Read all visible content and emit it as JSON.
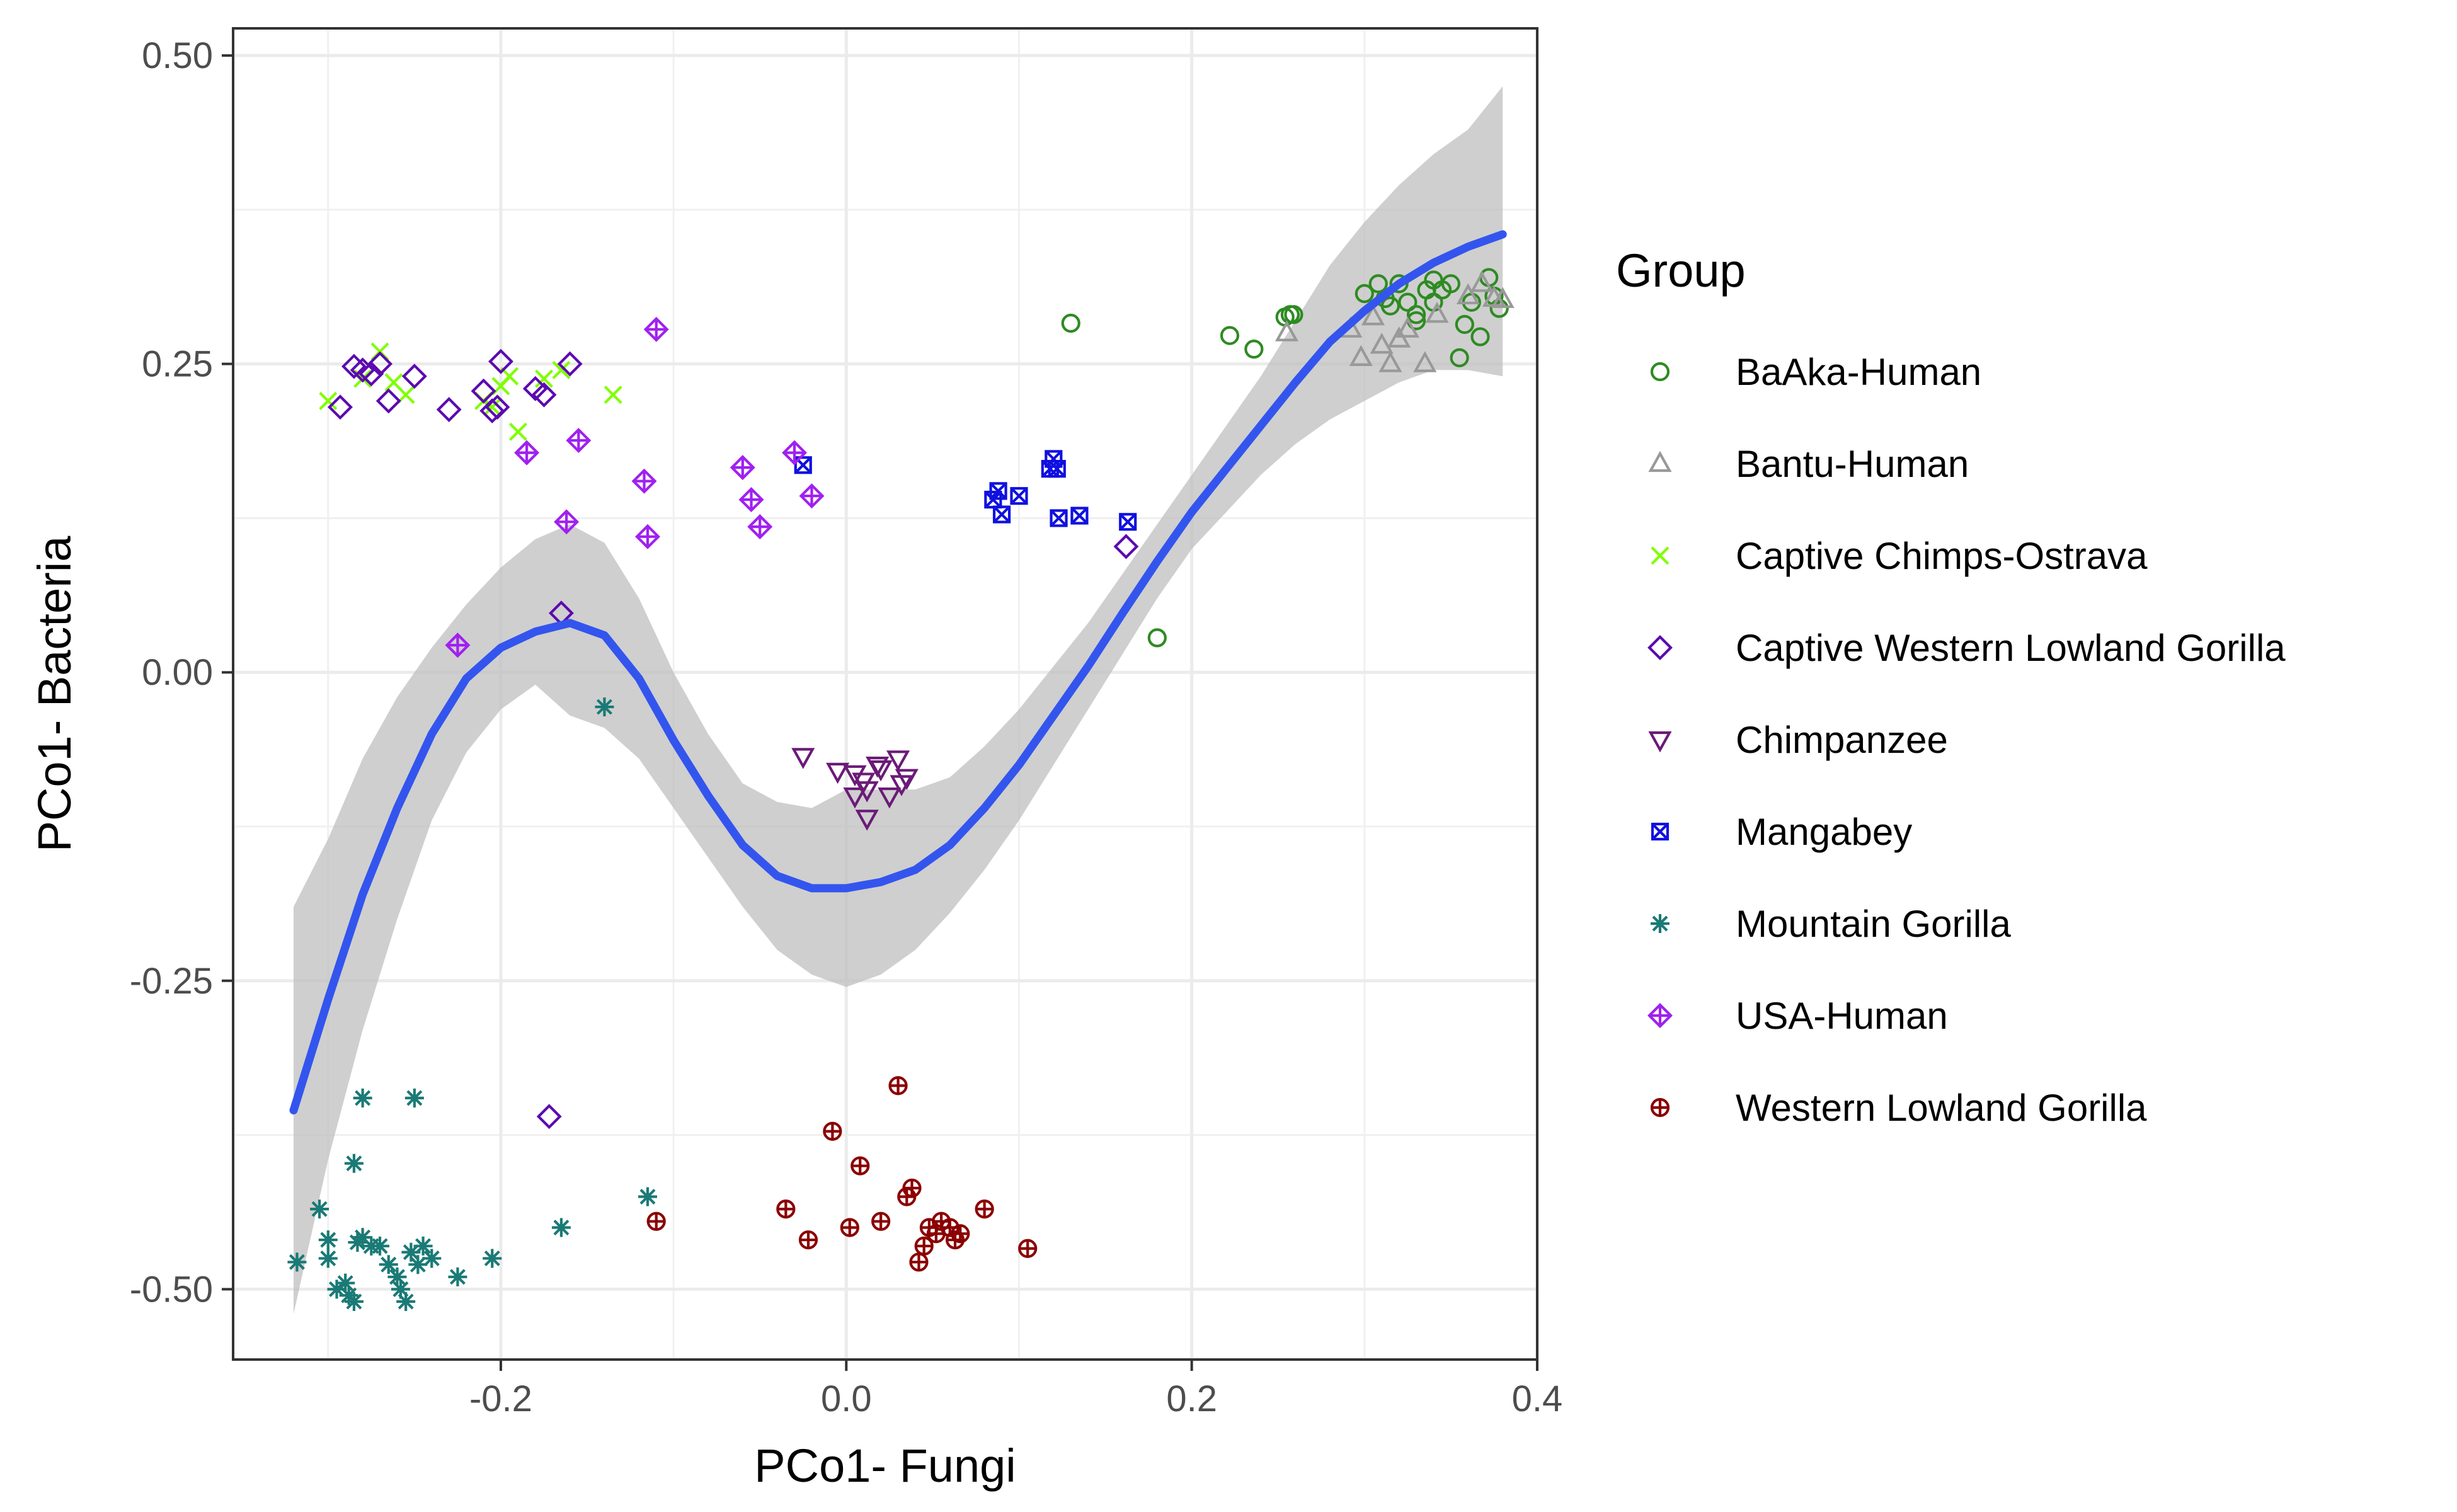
{
  "chart_data": {
    "type": "scatter",
    "xlabel": "PCo1- Fungi",
    "ylabel": "PCo1- Bacteria",
    "xlim": [
      -0.355,
      0.4
    ],
    "ylim": [
      -0.557,
      0.522
    ],
    "x_ticks": [
      -0.2,
      0.0,
      0.2,
      0.4
    ],
    "x_tick_labels": [
      "-0.2",
      "0.0",
      "0.2",
      "0.4"
    ],
    "y_ticks": [
      -0.5,
      -0.25,
      0.0,
      0.25,
      0.5
    ],
    "y_tick_labels": [
      "-0.50",
      "-0.25",
      "0.00",
      "0.25",
      "0.50"
    ],
    "grid": true,
    "legend_position": "right",
    "legend_title": "Group",
    "series": [
      {
        "name": "BaAka-Human",
        "color": "#2e8b22",
        "shape": "circle",
        "points": [
          [
            0.13,
            0.283
          ],
          [
            0.18,
            0.028
          ],
          [
            0.222,
            0.273
          ],
          [
            0.236,
            0.262
          ],
          [
            0.254,
            0.288
          ],
          [
            0.257,
            0.29
          ],
          [
            0.259,
            0.29
          ],
          [
            0.3,
            0.307
          ],
          [
            0.308,
            0.315
          ],
          [
            0.312,
            0.303
          ],
          [
            0.315,
            0.297
          ],
          [
            0.32,
            0.315
          ],
          [
            0.325,
            0.3
          ],
          [
            0.33,
            0.29
          ],
          [
            0.336,
            0.31
          ],
          [
            0.34,
            0.318
          ],
          [
            0.345,
            0.31
          ],
          [
            0.35,
            0.315
          ],
          [
            0.355,
            0.255
          ],
          [
            0.358,
            0.282
          ],
          [
            0.362,
            0.3
          ],
          [
            0.367,
            0.272
          ],
          [
            0.372,
            0.32
          ],
          [
            0.375,
            0.305
          ],
          [
            0.378,
            0.295
          ],
          [
            0.34,
            0.3
          ],
          [
            0.33,
            0.285
          ]
        ]
      },
      {
        "name": "Bantu-Human",
        "color": "#999999",
        "shape": "triangle",
        "points": [
          [
            0.255,
            0.275
          ],
          [
            0.292,
            0.278
          ],
          [
            0.298,
            0.255
          ],
          [
            0.305,
            0.288
          ],
          [
            0.31,
            0.265
          ],
          [
            0.315,
            0.25
          ],
          [
            0.32,
            0.27
          ],
          [
            0.335,
            0.25
          ],
          [
            0.342,
            0.29
          ],
          [
            0.36,
            0.305
          ],
          [
            0.368,
            0.315
          ],
          [
            0.375,
            0.303
          ],
          [
            0.38,
            0.302
          ],
          [
            0.325,
            0.278
          ]
        ]
      },
      {
        "name": "Captive Chimps-Ostrava",
        "color": "#7fff00",
        "shape": "x",
        "points": [
          [
            -0.3,
            0.22
          ],
          [
            -0.28,
            0.238
          ],
          [
            -0.27,
            0.26
          ],
          [
            -0.262,
            0.235
          ],
          [
            -0.255,
            0.225
          ],
          [
            -0.21,
            0.22
          ],
          [
            -0.205,
            0.215
          ],
          [
            -0.2,
            0.232
          ],
          [
            -0.195,
            0.24
          ],
          [
            -0.19,
            0.195
          ],
          [
            -0.175,
            0.238
          ],
          [
            -0.165,
            0.245
          ],
          [
            -0.135,
            0.225
          ]
        ]
      },
      {
        "name": "Captive Western Lowland Gorilla",
        "color": "#5c0ab0",
        "shape": "diamond",
        "points": [
          [
            -0.293,
            0.215
          ],
          [
            -0.285,
            0.248
          ],
          [
            -0.28,
            0.245
          ],
          [
            -0.275,
            0.242
          ],
          [
            -0.27,
            0.25
          ],
          [
            -0.265,
            0.22
          ],
          [
            -0.25,
            0.24
          ],
          [
            -0.23,
            0.213
          ],
          [
            -0.21,
            0.228
          ],
          [
            -0.205,
            0.212
          ],
          [
            -0.202,
            0.215
          ],
          [
            -0.2,
            0.252
          ],
          [
            -0.18,
            0.23
          ],
          [
            -0.175,
            0.225
          ],
          [
            -0.16,
            0.25
          ],
          [
            -0.165,
            0.048
          ],
          [
            -0.172,
            -0.36
          ],
          [
            0.162,
            0.102
          ]
        ]
      },
      {
        "name": "Chimpanzee",
        "color": "#6b1a78",
        "shape": "triangle-down",
        "points": [
          [
            -0.025,
            -0.068
          ],
          [
            -0.005,
            -0.08
          ],
          [
            0.005,
            -0.082
          ],
          [
            0.01,
            -0.088
          ],
          [
            0.012,
            -0.095
          ],
          [
            0.018,
            -0.075
          ],
          [
            0.02,
            -0.078
          ],
          [
            0.025,
            -0.1
          ],
          [
            0.03,
            -0.07
          ],
          [
            0.032,
            -0.09
          ],
          [
            0.035,
            -0.085
          ],
          [
            0.012,
            -0.118
          ],
          [
            0.005,
            -0.1
          ]
        ]
      },
      {
        "name": "Mangabey",
        "color": "#1010e0",
        "shape": "boxx",
        "points": [
          [
            -0.025,
            0.168
          ],
          [
            0.085,
            0.14
          ],
          [
            0.088,
            0.147
          ],
          [
            0.09,
            0.128
          ],
          [
            0.1,
            0.143
          ],
          [
            0.118,
            0.165
          ],
          [
            0.12,
            0.173
          ],
          [
            0.122,
            0.165
          ],
          [
            0.123,
            0.125
          ],
          [
            0.135,
            0.127
          ],
          [
            0.163,
            0.122
          ]
        ]
      },
      {
        "name": "Mountain Gorilla",
        "color": "#1a7a75",
        "shape": "asterisk",
        "points": [
          [
            -0.14,
            -0.028
          ],
          [
            -0.318,
            -0.478
          ],
          [
            -0.305,
            -0.435
          ],
          [
            -0.3,
            -0.46
          ],
          [
            -0.3,
            -0.475
          ],
          [
            -0.295,
            -0.5
          ],
          [
            -0.29,
            -0.495
          ],
          [
            -0.288,
            -0.505
          ],
          [
            -0.285,
            -0.51
          ],
          [
            -0.283,
            -0.462
          ],
          [
            -0.28,
            -0.345
          ],
          [
            -0.28,
            -0.458
          ],
          [
            -0.275,
            -0.465
          ],
          [
            -0.27,
            -0.465
          ],
          [
            -0.265,
            -0.48
          ],
          [
            -0.26,
            -0.49
          ],
          [
            -0.258,
            -0.5
          ],
          [
            -0.255,
            -0.51
          ],
          [
            -0.252,
            -0.47
          ],
          [
            -0.25,
            -0.345
          ],
          [
            -0.248,
            -0.48
          ],
          [
            -0.245,
            -0.465
          ],
          [
            -0.24,
            -0.475
          ],
          [
            -0.225,
            -0.49
          ],
          [
            -0.205,
            -0.475
          ],
          [
            -0.165,
            -0.45
          ],
          [
            -0.115,
            -0.425
          ],
          [
            -0.285,
            -0.398
          ]
        ]
      },
      {
        "name": "USA-Human",
        "color": "#a020f0",
        "shape": "diamondplus",
        "points": [
          [
            -0.225,
            0.022
          ],
          [
            -0.11,
            0.278
          ],
          [
            -0.117,
            0.155
          ],
          [
            -0.115,
            0.11
          ],
          [
            -0.155,
            0.188
          ],
          [
            -0.162,
            0.122
          ],
          [
            -0.185,
            0.178
          ],
          [
            -0.06,
            0.166
          ],
          [
            -0.055,
            0.14
          ],
          [
            -0.05,
            0.118
          ],
          [
            -0.03,
            0.178
          ],
          [
            -0.02,
            0.143
          ]
        ]
      },
      {
        "name": "Western Lowland Gorilla",
        "color": "#8b0000",
        "shape": "circleplus",
        "points": [
          [
            -0.11,
            -0.445
          ],
          [
            -0.035,
            -0.435
          ],
          [
            -0.022,
            -0.46
          ],
          [
            -0.008,
            -0.372
          ],
          [
            0.002,
            -0.45
          ],
          [
            0.008,
            -0.4
          ],
          [
            0.02,
            -0.445
          ],
          [
            0.03,
            -0.335
          ],
          [
            0.035,
            -0.425
          ],
          [
            0.038,
            -0.418
          ],
          [
            0.042,
            -0.478
          ],
          [
            0.045,
            -0.465
          ],
          [
            0.048,
            -0.45
          ],
          [
            0.052,
            -0.455
          ],
          [
            0.055,
            -0.445
          ],
          [
            0.06,
            -0.45
          ],
          [
            0.063,
            -0.46
          ],
          [
            0.066,
            -0.455
          ],
          [
            0.08,
            -0.435
          ],
          [
            0.105,
            -0.467
          ]
        ]
      }
    ],
    "smooth": {
      "color": "#3355ee",
      "band_color": "#bfbfbf",
      "x": [
        -0.32,
        -0.3,
        -0.28,
        -0.26,
        -0.24,
        -0.22,
        -0.2,
        -0.18,
        -0.16,
        -0.14,
        -0.12,
        -0.1,
        -0.08,
        -0.06,
        -0.04,
        -0.02,
        0.0,
        0.02,
        0.04,
        0.06,
        0.08,
        0.1,
        0.12,
        0.14,
        0.16,
        0.18,
        0.2,
        0.22,
        0.24,
        0.26,
        0.28,
        0.3,
        0.32,
        0.34,
        0.36,
        0.38
      ],
      "y": [
        -0.355,
        -0.265,
        -0.18,
        -0.11,
        -0.05,
        -0.005,
        0.02,
        0.033,
        0.04,
        0.03,
        -0.005,
        -0.055,
        -0.1,
        -0.14,
        -0.165,
        -0.175,
        -0.175,
        -0.17,
        -0.16,
        -0.14,
        -0.11,
        -0.075,
        -0.035,
        0.005,
        0.048,
        0.09,
        0.13,
        0.165,
        0.2,
        0.235,
        0.268,
        0.293,
        0.315,
        0.332,
        0.345,
        0.355
      ],
      "lower": [
        -0.52,
        -0.395,
        -0.29,
        -0.2,
        -0.12,
        -0.065,
        -0.03,
        -0.01,
        -0.035,
        -0.045,
        -0.07,
        -0.11,
        -0.15,
        -0.19,
        -0.225,
        -0.245,
        -0.255,
        -0.245,
        -0.225,
        -0.195,
        -0.16,
        -0.12,
        -0.075,
        -0.03,
        0.015,
        0.06,
        0.1,
        0.13,
        0.16,
        0.185,
        0.205,
        0.22,
        0.235,
        0.245,
        0.245,
        0.24
      ],
      "upper": [
        -0.19,
        -0.135,
        -0.07,
        -0.02,
        0.02,
        0.055,
        0.085,
        0.108,
        0.12,
        0.105,
        0.06,
        0.0,
        -0.05,
        -0.09,
        -0.105,
        -0.11,
        -0.095,
        -0.095,
        -0.095,
        -0.085,
        -0.06,
        -0.03,
        0.005,
        0.04,
        0.08,
        0.12,
        0.16,
        0.2,
        0.24,
        0.285,
        0.33,
        0.365,
        0.395,
        0.42,
        0.44,
        0.475
      ]
    }
  }
}
